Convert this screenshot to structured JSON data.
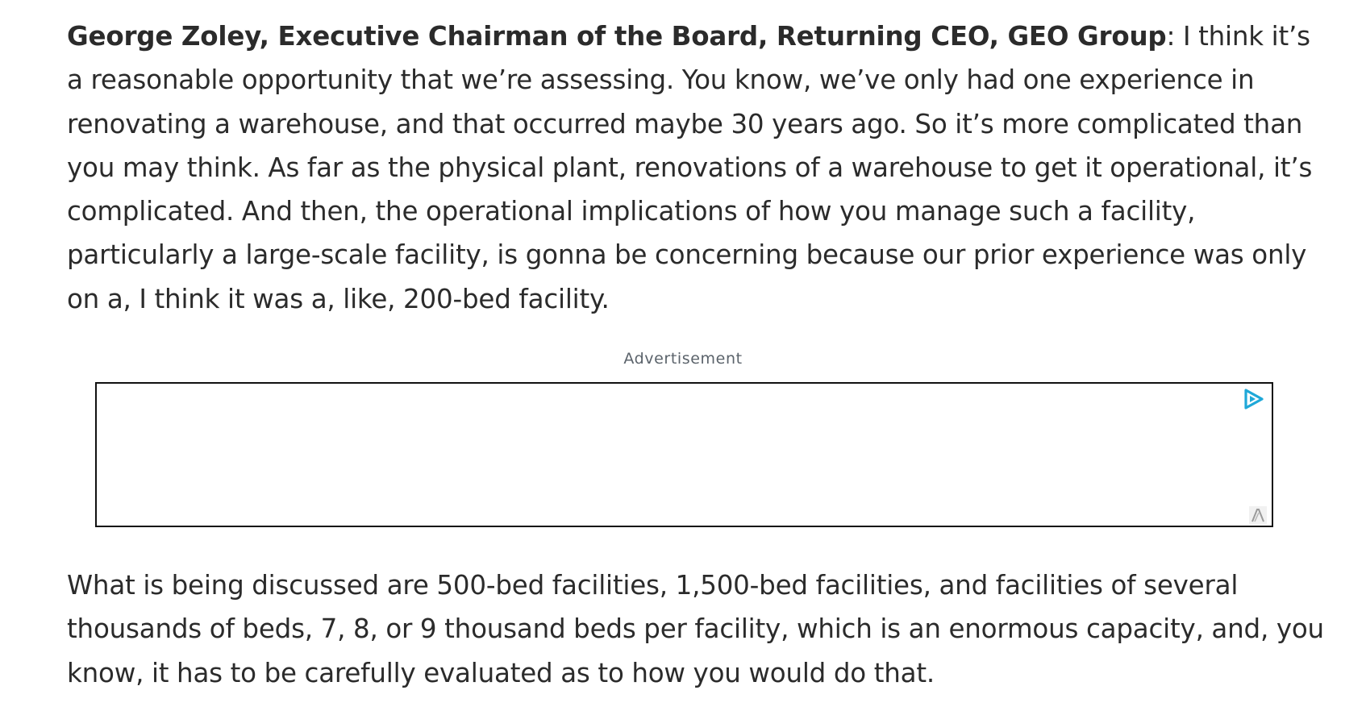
{
  "paragraph1": {
    "speaker": "George Zoley, Executive Chairman of the Board, Returning CEO, GEO Group",
    "colon": ":",
    "text": " I think it’s a reasonable opportunity that we’re assessing. You know, we’ve only had one experience in renovating a warehouse, and that occurred maybe 30 years ago. So it’s more complicated than you may think. As far as the physical plant, renovations of a warehouse to get it operational, it’s complicated. And then, the operational implications of how you manage such a facility, particularly a large-scale facility, is gonna be concerning because our prior experience was only on a, I think it was a, like, 200-bed facility."
  },
  "ad": {
    "label": "Advertisement",
    "icons": [
      "adchoices-icon",
      "ad-corner-icon"
    ],
    "accent_color": "#1fa8d8"
  },
  "paragraph2": {
    "text": "What is being discussed are 500-bed facilities, 1,500-bed facilities, and facilities of several thousands of beds, 7, 8, or 9 thousand beds per facility, which is an enormous capacity, and, you know, it has to be carefully evaluated as to how you would do that."
  }
}
